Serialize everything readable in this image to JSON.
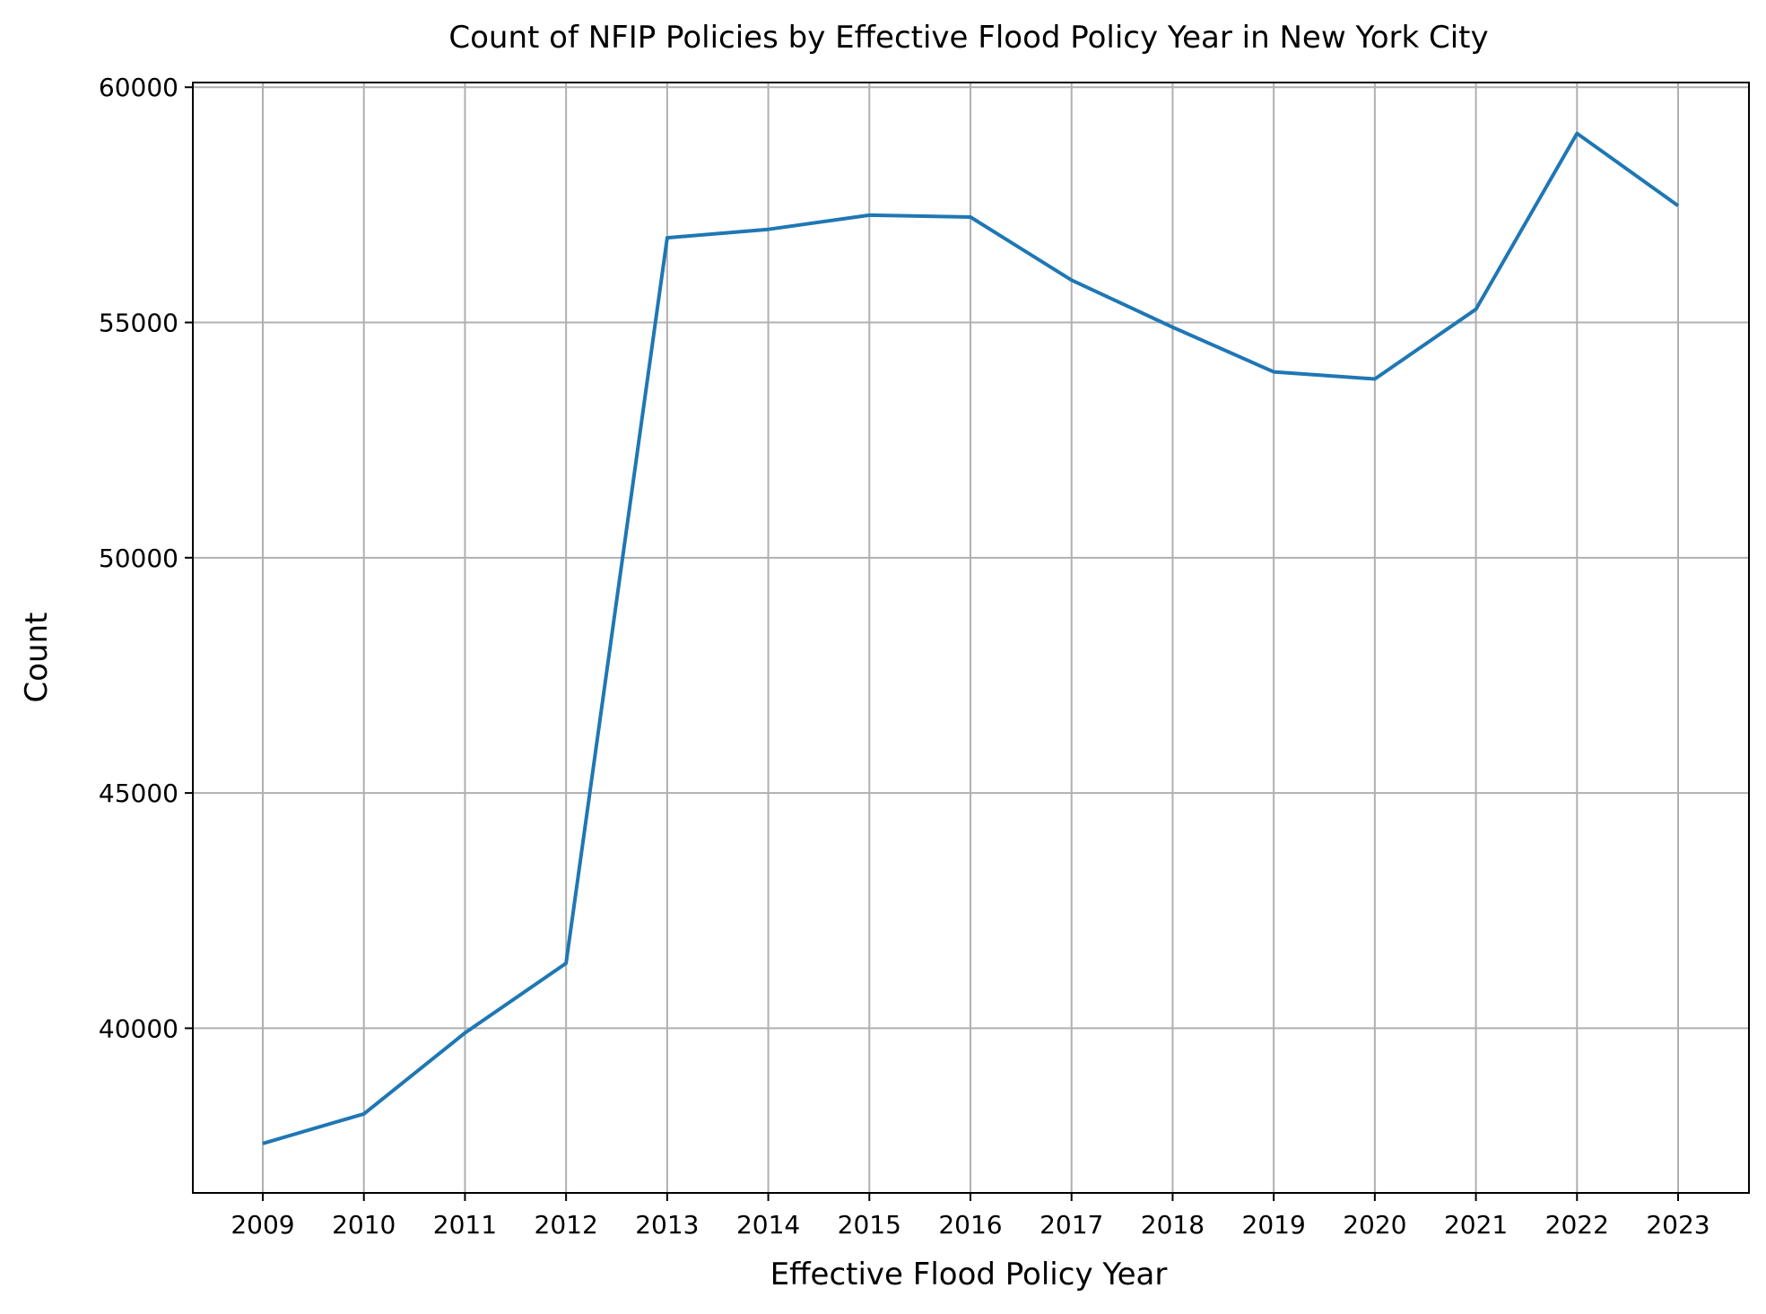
{
  "chart_data": {
    "type": "line",
    "title": "Count of NFIP Policies by Effective Flood Policy Year in New York City",
    "xlabel": "Effective Flood Policy Year",
    "ylabel": "Count",
    "categories": [
      "2009",
      "2010",
      "2011",
      "2012",
      "2013",
      "2014",
      "2015",
      "2016",
      "2017",
      "2018",
      "2019",
      "2020",
      "2021",
      "2022",
      "2023"
    ],
    "series": [
      {
        "name": "Count",
        "color": "#1f77b4",
        "values": [
          37550,
          38180,
          39900,
          41380,
          56800,
          56980,
          57280,
          57240,
          55900,
          54900,
          53950,
          53800,
          55280,
          59020,
          57480
        ]
      }
    ],
    "ylim": [
      36500,
      60100
    ],
    "yticks": [
      40000,
      45000,
      50000,
      55000,
      60000
    ],
    "ytick_labels": [
      "40000",
      "45000",
      "50000",
      "55000",
      "60000"
    ],
    "grid": true
  }
}
